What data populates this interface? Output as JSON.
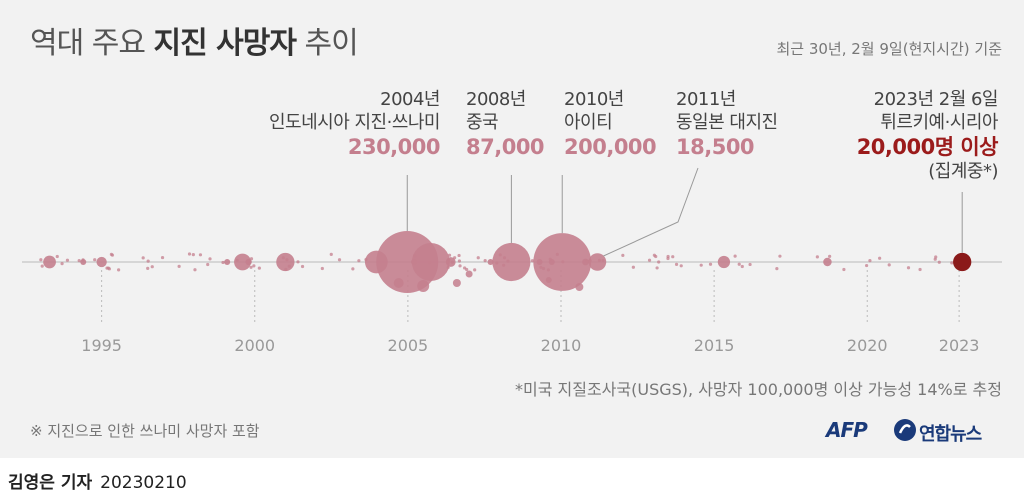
{
  "header": {
    "title_pre": "역대 주요",
    "title_bold": "지진 사망자",
    "title_post": "추이",
    "subtitle": "최근 30년, 2월 9일(현지시간) 기준"
  },
  "chart_data": {
    "type": "scatter",
    "x_axis": {
      "range": [
        1992.4,
        2024.4
      ],
      "ticks": [
        "1995",
        "2000",
        "2005",
        "2010",
        "2015",
        "2020",
        "2023"
      ],
      "tick_years": [
        1995,
        2000,
        2005,
        2010,
        2015,
        2020,
        2023
      ]
    },
    "annotations": [
      {
        "year": 2004.98,
        "line1": "2004년",
        "line2": "인도네시아 지진·쓰나미",
        "value": "230,000",
        "deaths": 230000
      },
      {
        "year": 2008.38,
        "line1": "2008년",
        "line2": "중국",
        "value": "87,000",
        "deaths": 87000
      },
      {
        "year": 2010.04,
        "line1": "2010년",
        "line2": "아이티",
        "value": "200,000",
        "deaths": 200000
      },
      {
        "year": 2011.19,
        "line1": "2011년",
        "line2": "동일본 대지진",
        "value": "18,500",
        "deaths": 18500
      },
      {
        "year": 2023.1,
        "line1": "2023년 2월 6일",
        "line2": "튀르키예·시리아",
        "value": "20,000명 이상",
        "value_note": "(집계중*)",
        "deaths": 20000,
        "highlight": true
      }
    ],
    "points": [
      [
        1992.8,
        3
      ],
      [
        1993.3,
        9700
      ],
      [
        1993.9,
        2
      ],
      [
        1994.4,
        800
      ],
      [
        1994.9,
        1
      ],
      [
        1995.0,
        6400
      ],
      [
        1995.4,
        2
      ],
      [
        1995.9,
        1
      ],
      [
        1996.2,
        3
      ],
      [
        1996.6,
        2
      ],
      [
        1997.1,
        2
      ],
      [
        1997.5,
        3
      ],
      [
        1998.1,
        1
      ],
      [
        1998.4,
        4
      ],
      [
        1998.9,
        1
      ],
      [
        1999.1,
        1200
      ],
      [
        1999.6,
        17000
      ],
      [
        1999.8,
        2400
      ],
      [
        2000.2,
        1
      ],
      [
        2000.7,
        1
      ],
      [
        2001.0,
        20000
      ],
      [
        2001.4,
        2
      ],
      [
        2002.0,
        1
      ],
      [
        2002.4,
        2
      ],
      [
        2002.9,
        1
      ],
      [
        2003.0,
        2
      ],
      [
        2003.4,
        1
      ],
      [
        2003.9,
        1
      ],
      [
        2003.97,
        31000
      ],
      [
        2004.5,
        2
      ],
      [
        2004.98,
        230000
      ],
      [
        2005.2,
        1300
      ],
      [
        2005.6,
        1
      ],
      [
        2005.75,
        86000
      ],
      [
        2006.2,
        1
      ],
      [
        2006.4,
        5700
      ],
      [
        2006.7,
        4
      ],
      [
        2007.3,
        2
      ],
      [
        2007.7,
        500
      ],
      [
        2008.2,
        1
      ],
      [
        2008.38,
        87000
      ],
      [
        2008.9,
        2
      ],
      [
        2009.3,
        300
      ],
      [
        2009.7,
        1100
      ],
      [
        2010.04,
        200000
      ],
      [
        2010.3,
        2
      ],
      [
        2010.8,
        2700
      ],
      [
        2011.19,
        18500
      ],
      [
        2011.5,
        1
      ],
      [
        2011.9,
        1
      ],
      [
        2012.3,
        2
      ],
      [
        2012.7,
        1
      ],
      [
        2013.3,
        1
      ],
      [
        2013.7,
        2
      ],
      [
        2014.2,
        1
      ],
      [
        2014.6,
        2
      ],
      [
        2015.32,
        9000
      ],
      [
        2015.8,
        1
      ],
      [
        2016.3,
        2
      ],
      [
        2016.7,
        1
      ],
      [
        2017.2,
        1
      ],
      [
        2017.7,
        2
      ],
      [
        2018.3,
        1
      ],
      [
        2018.7,
        4300
      ],
      [
        2019.2,
        2
      ],
      [
        2019.7,
        1
      ],
      [
        2020.3,
        1
      ],
      [
        2020.8,
        2
      ],
      [
        2021.3,
        1
      ],
      [
        2021.6,
        2
      ],
      [
        2022.2,
        1
      ],
      [
        2022.6,
        2
      ],
      [
        2023.1,
        20000
      ]
    ],
    "colors": {
      "bubble": "#c47f8e",
      "highlight": "#8b1a1a",
      "axis": "#cccccc",
      "tick_text": "#999999"
    }
  },
  "notes": {
    "usgs": "*미국 지질조사국(USGS), 사망자 100,000명 이상 가능성 14%로 추정",
    "tsunami": "※ 지진으로 인한 쓰나미 사망자 포함"
  },
  "logos": {
    "afp": "AFP",
    "yonhap": "연합뉴스",
    "yonhap_icon": "yonhap-icon"
  },
  "byline": {
    "author": "김영은 기자",
    "date": "20230210"
  }
}
